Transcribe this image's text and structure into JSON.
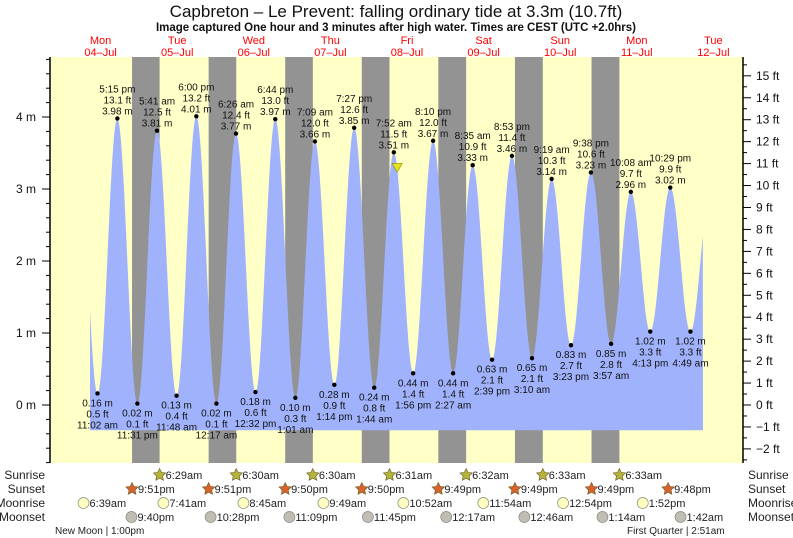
{
  "header": {
    "title": "Capbreton – Le Prevent: falling  ordinary tide at 3.3m (10.7ft)",
    "subtitle": "Image captured One hour and 3 minutes after high water. Times are CEST (UTC +2.0hrs)"
  },
  "colors": {
    "day": "#ffffc8",
    "night": "#939393",
    "water": "#a0b2fb",
    "day_label": "#ff0000",
    "sunrise": "#b4b43c",
    "sunset": "#d8622c",
    "moonrise": "#ffffc0",
    "moonset": "#c0bdb4",
    "current_marker": "#e8e020"
  },
  "chart_data": {
    "type": "area",
    "title": "Capbreton – Le Prevent: falling  ordinary tide at 3.3m (10.7ft)",
    "days": [
      {
        "weekday": "Mon",
        "date": "04–Jul"
      },
      {
        "weekday": "Tue",
        "date": "05–Jul"
      },
      {
        "weekday": "Wed",
        "date": "06–Jul"
      },
      {
        "weekday": "Thu",
        "date": "07–Jul"
      },
      {
        "weekday": "Fri",
        "date": "08–Jul"
      },
      {
        "weekday": "Sat",
        "date": "09–Jul"
      },
      {
        "weekday": "Sun",
        "date": "10–Jul"
      },
      {
        "weekday": "Mon",
        "date": "11–Jul"
      },
      {
        "weekday": "Tue",
        "date": "12–Jul"
      }
    ],
    "y_left": {
      "unit": "m",
      "ticks": [
        "0 m",
        "1 m",
        "2 m",
        "3 m",
        "4 m"
      ],
      "range": [
        -0.72,
        4.9
      ]
    },
    "y_right": {
      "unit": "ft",
      "ticks": [
        "−2 ft",
        "−1 ft",
        "0 ft",
        "1 ft",
        "2 ft",
        "3 ft",
        "4 ft",
        "5 ft",
        "6 ft",
        "7 ft",
        "8 ft",
        "9 ft",
        "10 ft",
        "11 ft",
        "12 ft",
        "13 ft",
        "14 ft",
        "15 ft"
      ]
    },
    "extremes": [
      {
        "day": 0,
        "time": "11:02 am",
        "m": "0.16 m",
        "ft": "0.5 ft",
        "value": 0.16,
        "type": "low"
      },
      {
        "day": 0,
        "time": "5:15 pm",
        "m": "3.98 m",
        "ft": "13.1 ft",
        "value": 3.98,
        "type": "high"
      },
      {
        "day": 0,
        "time": "11:31 pm",
        "m": "0.02 m",
        "ft": "0.1 ft",
        "value": 0.02,
        "type": "low"
      },
      {
        "day": 1,
        "time": "5:41 am",
        "m": "3.81 m",
        "ft": "12.5 ft",
        "value": 3.81,
        "type": "high"
      },
      {
        "day": 1,
        "time": "11:48 am",
        "m": "0.13 m",
        "ft": "0.4 ft",
        "value": 0.13,
        "type": "low"
      },
      {
        "day": 1,
        "time": "6:00 pm",
        "m": "4.01 m",
        "ft": "13.2 ft",
        "value": 4.01,
        "type": "high"
      },
      {
        "day": 2,
        "time": "12:17 am",
        "m": "0.02 m",
        "ft": "0.1 ft",
        "value": 0.02,
        "type": "low"
      },
      {
        "day": 2,
        "time": "6:26 am",
        "m": "3.77 m",
        "ft": "12.4 ft",
        "value": 3.77,
        "type": "high"
      },
      {
        "day": 2,
        "time": "12:32 pm",
        "m": "0.18 m",
        "ft": "0.6 ft",
        "value": 0.18,
        "type": "low"
      },
      {
        "day": 2,
        "time": "6:44 pm",
        "m": "3.97 m",
        "ft": "13.0 ft",
        "value": 3.97,
        "type": "high"
      },
      {
        "day": 3,
        "time": "1:01 am",
        "m": "0.10 m",
        "ft": "0.3 ft",
        "value": 0.1,
        "type": "low"
      },
      {
        "day": 3,
        "time": "7:09 am",
        "m": "3.66 m",
        "ft": "12.0 ft",
        "value": 3.66,
        "type": "high"
      },
      {
        "day": 3,
        "time": "1:14 pm",
        "m": "0.28 m",
        "ft": "0.9 ft",
        "value": 0.28,
        "type": "low"
      },
      {
        "day": 3,
        "time": "7:27 pm",
        "m": "3.85 m",
        "ft": "12.6 ft",
        "value": 3.85,
        "type": "high"
      },
      {
        "day": 4,
        "time": "1:44 am",
        "m": "0.24 m",
        "ft": "0.8 ft",
        "value": 0.24,
        "type": "low"
      },
      {
        "day": 4,
        "time": "7:52 am",
        "m": "3.51 m",
        "ft": "11.5 ft",
        "value": 3.51,
        "type": "high"
      },
      {
        "day": 4,
        "time": "1:56 pm",
        "m": "0.44 m",
        "ft": "1.4 ft",
        "value": 0.44,
        "type": "low"
      },
      {
        "day": 4,
        "time": "8:10 pm",
        "m": "3.67 m",
        "ft": "12.0 ft",
        "value": 3.67,
        "type": "high"
      },
      {
        "day": 5,
        "time": "2:27 am",
        "m": "0.44 m",
        "ft": "1.4 ft",
        "value": 0.44,
        "type": "low"
      },
      {
        "day": 5,
        "time": "8:35 am",
        "m": "3.33 m",
        "ft": "10.9 ft",
        "value": 3.33,
        "type": "high"
      },
      {
        "day": 5,
        "time": "2:39 pm",
        "m": "0.63 m",
        "ft": "2.1 ft",
        "value": 0.63,
        "type": "low"
      },
      {
        "day": 5,
        "time": "8:53 pm",
        "m": "3.46 m",
        "ft": "11.4 ft",
        "value": 3.46,
        "type": "high"
      },
      {
        "day": 6,
        "time": "3:10 am",
        "m": "0.65 m",
        "ft": "2.1 ft",
        "value": 0.65,
        "type": "low"
      },
      {
        "day": 6,
        "time": "9:19 am",
        "m": "3.14 m",
        "ft": "10.3 ft",
        "value": 3.14,
        "type": "high"
      },
      {
        "day": 6,
        "time": "3:23 pm",
        "m": "0.83 m",
        "ft": "2.7 ft",
        "value": 0.83,
        "type": "low"
      },
      {
        "day": 6,
        "time": "9:38 pm",
        "m": "3.23 m",
        "ft": "10.6 ft",
        "value": 3.23,
        "type": "high"
      },
      {
        "day": 7,
        "time": "3:57 am",
        "m": "0.85 m",
        "ft": "2.8 ft",
        "value": 0.85,
        "type": "low"
      },
      {
        "day": 7,
        "time": "10:08 am",
        "m": "2.96 m",
        "ft": "9.7 ft",
        "value": 2.96,
        "type": "high"
      },
      {
        "day": 7,
        "time": "4:13 pm",
        "m": "1.02 m",
        "ft": "3.3 ft",
        "value": 1.02,
        "type": "low"
      },
      {
        "day": 7,
        "time": "10:29 pm",
        "m": "3.02 m",
        "ft": "9.9 ft",
        "value": 3.02,
        "type": "high"
      },
      {
        "day": 8,
        "time": "4:49 am",
        "m": "1.02 m",
        "ft": "3.3 ft",
        "value": 1.02,
        "type": "low"
      }
    ],
    "current": {
      "day": 4,
      "time": "8:55 am",
      "value": 3.3
    }
  },
  "almanac": {
    "labels": {
      "sunrise": "Sunrise",
      "sunset": "Sunset",
      "moonrise": "Moonrise",
      "moonset": "Moonset"
    },
    "sunrise": [
      {
        "day": 1,
        "time": "6:29am"
      },
      {
        "day": 2,
        "time": "6:30am"
      },
      {
        "day": 3,
        "time": "6:30am"
      },
      {
        "day": 4,
        "time": "6:31am"
      },
      {
        "day": 5,
        "time": "6:32am"
      },
      {
        "day": 6,
        "time": "6:33am"
      },
      {
        "day": 7,
        "time": "6:33am"
      }
    ],
    "sunset": [
      {
        "day": 0,
        "time": "9:51pm"
      },
      {
        "day": 1,
        "time": "9:51pm"
      },
      {
        "day": 2,
        "time": "9:50pm"
      },
      {
        "day": 3,
        "time": "9:50pm"
      },
      {
        "day": 4,
        "time": "9:49pm"
      },
      {
        "day": 5,
        "time": "9:49pm"
      },
      {
        "day": 6,
        "time": "9:49pm"
      },
      {
        "day": 7,
        "time": "9:48pm"
      }
    ],
    "moonrise": [
      {
        "day": 0,
        "time": "6:39am"
      },
      {
        "day": 1,
        "time": "7:41am"
      },
      {
        "day": 2,
        "time": "8:45am"
      },
      {
        "day": 3,
        "time": "9:49am"
      },
      {
        "day": 4,
        "time": "10:52am"
      },
      {
        "day": 5,
        "time": "11:54am"
      },
      {
        "day": 6,
        "time": "12:54pm"
      },
      {
        "day": 7,
        "time": "1:52pm"
      }
    ],
    "moonset": [
      {
        "day": 0,
        "time": "9:40pm"
      },
      {
        "day": 1,
        "time": "10:28pm"
      },
      {
        "day": 2,
        "time": "11:09pm"
      },
      {
        "day": 3,
        "time": "11:45pm"
      },
      {
        "day": 5,
        "time": "12:17am"
      },
      {
        "day": 6,
        "time": "12:46am"
      },
      {
        "day": 7,
        "time": "1:14am"
      },
      {
        "day": 8,
        "time": "1:42am"
      }
    ],
    "phases": [
      {
        "day": 0,
        "label": "New Moon | 1:00pm"
      },
      {
        "day": 8,
        "label": "First Quarter | 2:51am"
      }
    ]
  }
}
